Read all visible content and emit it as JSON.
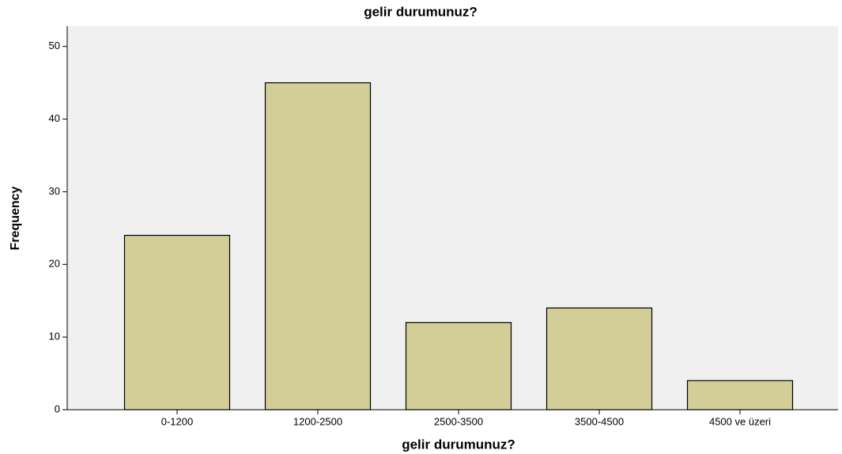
{
  "chart_data": {
    "type": "bar",
    "title": "gelir durumunuz?",
    "x_label": "gelir durumunuz?",
    "y_label": "Frequency",
    "categories": [
      "0-1200",
      "1200-2500",
      "2500-3500",
      "3500-4500",
      "4500 ve üzeri"
    ],
    "values": [
      24,
      45,
      12,
      14,
      4
    ],
    "color": "#d3ce97",
    "ylim": [
      0,
      52.8
    ],
    "yticks": [
      0,
      10,
      20,
      30,
      40,
      50
    ]
  }
}
